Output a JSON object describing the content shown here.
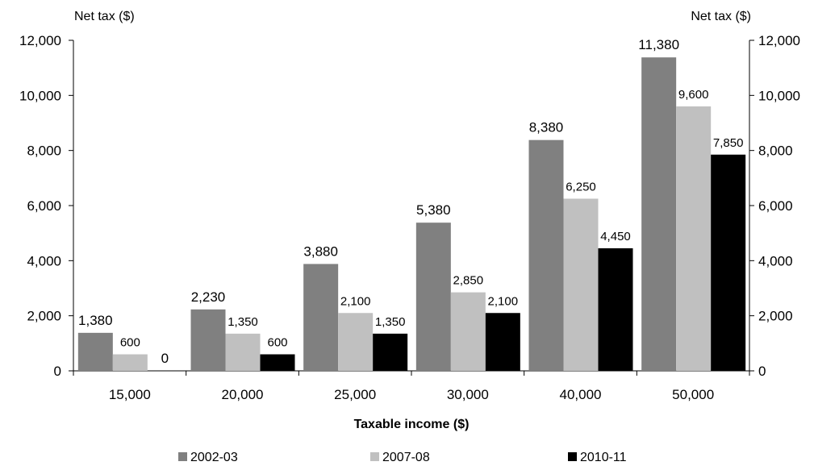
{
  "chart_data": {
    "type": "bar",
    "categories": [
      "15,000",
      "20,000",
      "25,000",
      "30,000",
      "40,000",
      "50,000"
    ],
    "series": [
      {
        "name": "2002-03",
        "values": [
          1380,
          2230,
          3880,
          5380,
          8380,
          11380
        ],
        "labels": [
          "1,380",
          "2,230",
          "3,880",
          "5,380",
          "8,380",
          "11,380"
        ],
        "color": "#808080"
      },
      {
        "name": "2007-08",
        "values": [
          600,
          1350,
          2100,
          2850,
          6250,
          9600
        ],
        "labels": [
          "600",
          "1,350",
          "2,100",
          "2,850",
          "6,250",
          "9,600"
        ],
        "color": "#c0c0c0"
      },
      {
        "name": "2010-11",
        "values": [
          0,
          600,
          1350,
          2100,
          4450,
          7850
        ],
        "labels": [
          "0",
          "600",
          "1,350",
          "2,100",
          "4,450",
          "7,850"
        ],
        "color": "#000000"
      }
    ],
    "xlabel": "Taxable income ($)",
    "ylabel_left": "Net tax ($)",
    "ylabel_right": "Net tax ($)",
    "ylim": [
      0,
      12000
    ],
    "yticks": [
      0,
      2000,
      4000,
      6000,
      8000,
      10000,
      12000
    ],
    "ytick_labels": [
      "0",
      "2,000",
      "4,000",
      "6,000",
      "8,000",
      "10,000",
      "12,000"
    ],
    "grid": false,
    "legend_position": "bottom"
  }
}
